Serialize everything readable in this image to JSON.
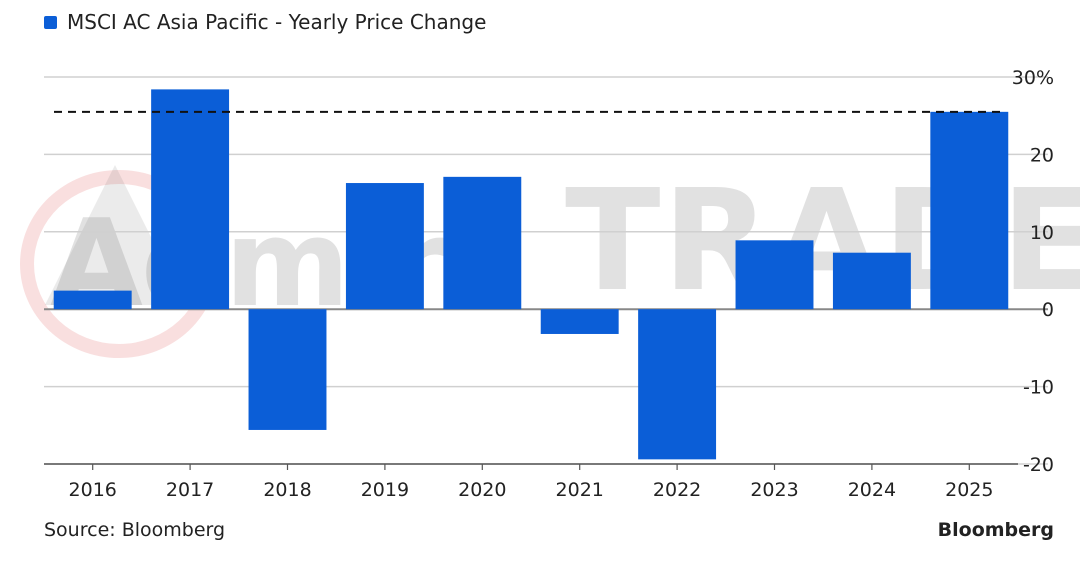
{
  "legend": {
    "label": "MSCI AC Asia Pacific - Yearly Price Change",
    "color": "#0b5ed7"
  },
  "footer": {
    "source": "Source: Bloomberg",
    "brand": "Bloomberg"
  },
  "watermark": {
    "text_left": "Admire",
    "text_right": "TRADER"
  },
  "chart_data": {
    "type": "bar",
    "categories": [
      "2016",
      "2017",
      "2018",
      "2019",
      "2020",
      "2021",
      "2022",
      "2023",
      "2024",
      "2025"
    ],
    "series": [
      {
        "values": [
          2.4,
          28.4,
          -15.6,
          16.3,
          17.1,
          -3.2,
          -19.4,
          8.9,
          7.3,
          25.5
        ]
      }
    ],
    "reference_line": {
      "value": 25.5,
      "style": "dashed"
    },
    "ylim": [
      -20,
      30
    ],
    "yticks": [
      -20,
      -10,
      0,
      10,
      20,
      30
    ],
    "ytick_labels": [
      "-20",
      "-10",
      "0",
      "10",
      "20",
      "30%"
    ],
    "y_axis_side": "right",
    "grid": true,
    "bar_color": "#0b5ed7"
  }
}
